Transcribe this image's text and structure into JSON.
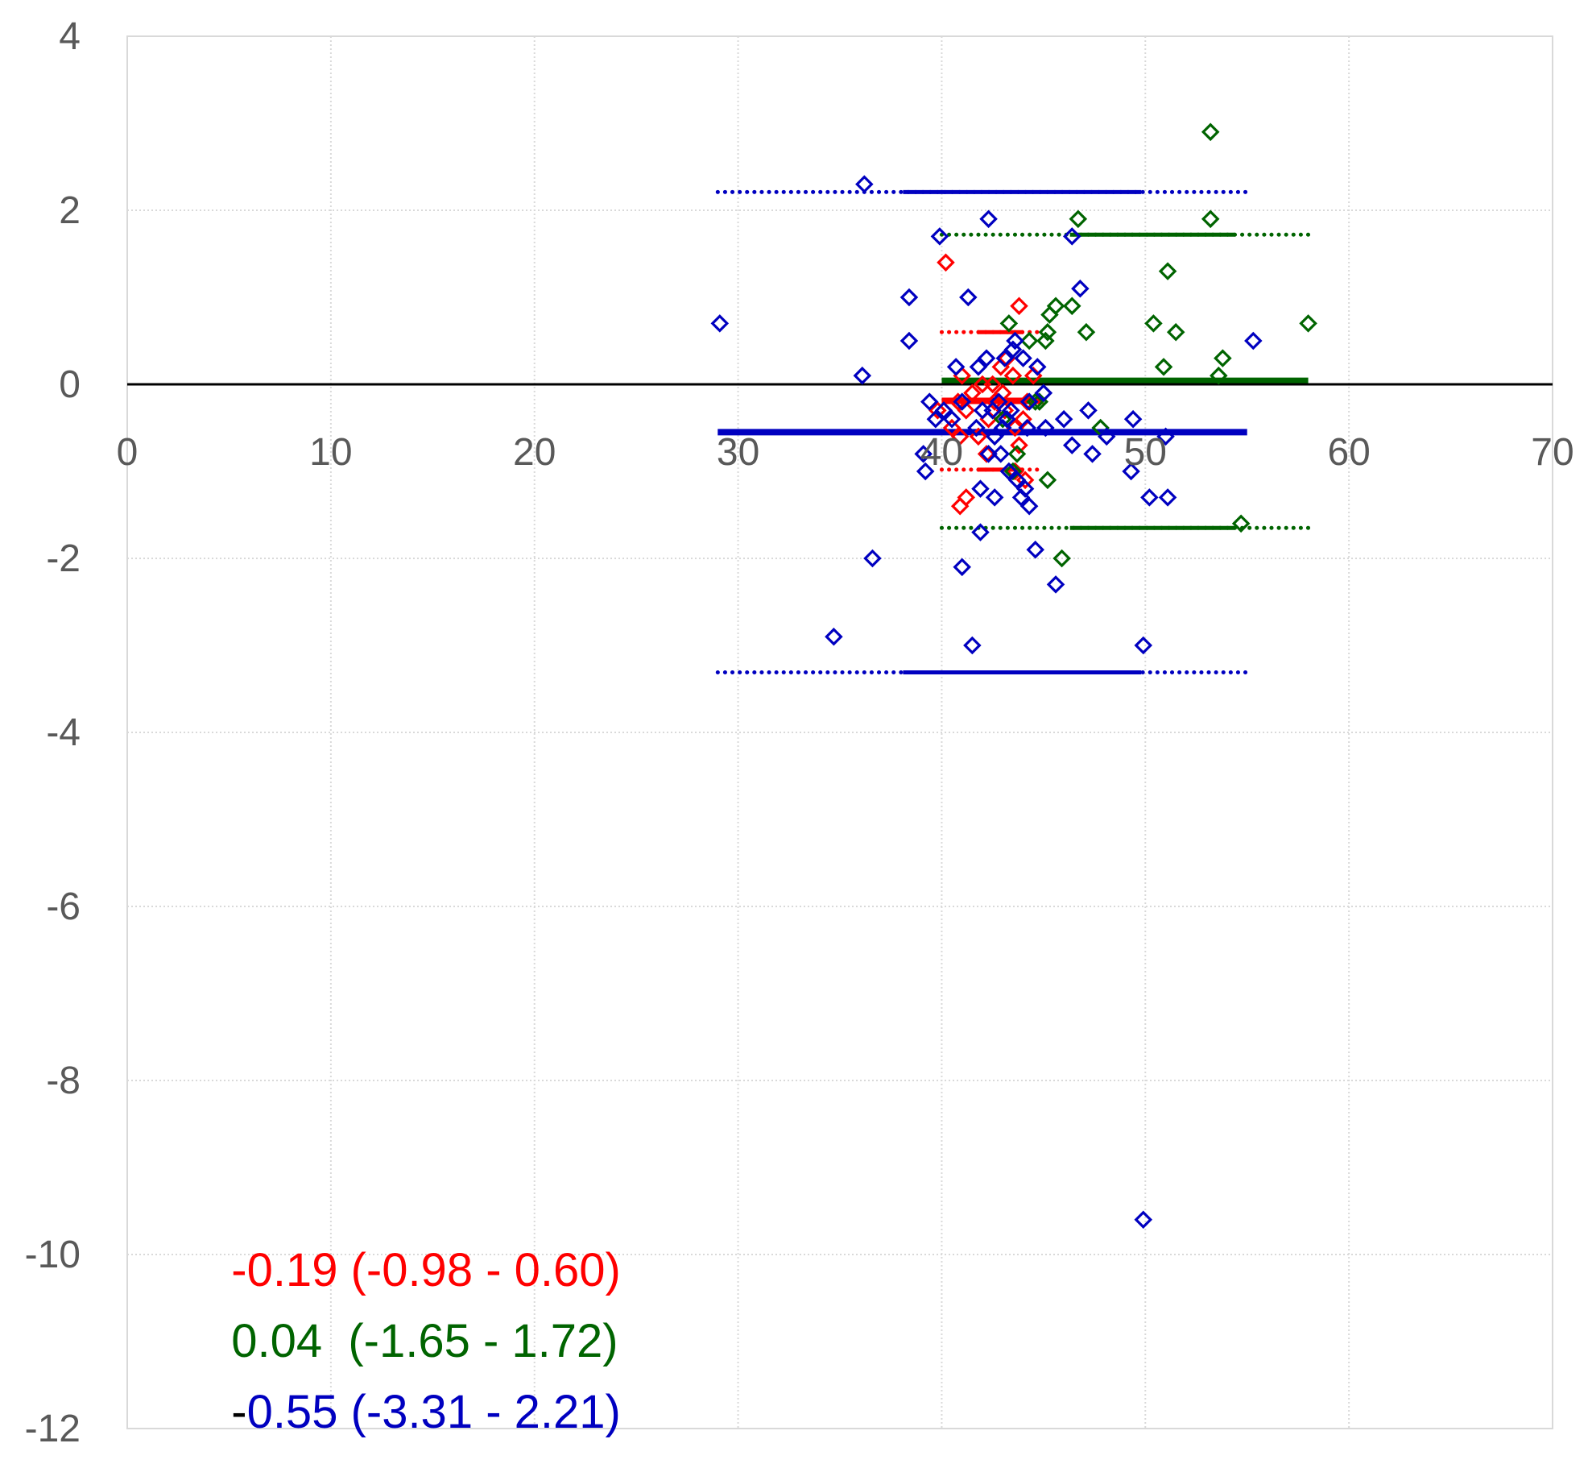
{
  "chart_data": {
    "type": "scatter",
    "title": "",
    "xlabel": "",
    "ylabel": "",
    "xlim": [
      0,
      70
    ],
    "ylim": [
      -12,
      4
    ],
    "x_ticks": [
      "0",
      "10",
      "20",
      "30",
      "40",
      "50",
      "60",
      "70"
    ],
    "y_ticks": [
      "4",
      "2",
      "0",
      "-2",
      "-4",
      "-6",
      "-8",
      "-10",
      "-12"
    ],
    "grid": true,
    "zero_line": 0,
    "series": [
      {
        "name": "red",
        "color": "#ff0000",
        "mean": -0.19,
        "lower": -0.98,
        "upper": 0.6,
        "limits_x": [
          40,
          45
        ],
        "label_lead": "-",
        "label_rest": "0.19 (-0.98 - 0.60)",
        "points": [
          [
            40.2,
            1.4
          ],
          [
            43.8,
            0.9
          ],
          [
            43.5,
            0.1
          ],
          [
            44.5,
            0.1
          ],
          [
            42.0,
            0.0
          ],
          [
            41.5,
            -0.1
          ],
          [
            40.8,
            -0.2
          ],
          [
            42.6,
            -0.2
          ],
          [
            43.1,
            -0.3
          ],
          [
            41.2,
            -0.3
          ],
          [
            39.8,
            -0.3
          ],
          [
            44.0,
            -0.4
          ],
          [
            42.3,
            -0.4
          ],
          [
            40.5,
            -0.5
          ],
          [
            43.6,
            -0.5
          ],
          [
            41.8,
            -0.6
          ],
          [
            42.9,
            0.2
          ],
          [
            43.2,
            0.3
          ],
          [
            41.0,
            0.1
          ],
          [
            44.2,
            -0.2
          ],
          [
            42.5,
            0.0
          ],
          [
            43.0,
            -0.1
          ],
          [
            40.9,
            -0.6
          ],
          [
            44.1,
            -1.1
          ],
          [
            43.6,
            -1.0
          ],
          [
            41.2,
            -1.3
          ],
          [
            40.9,
            -1.4
          ],
          [
            42.2,
            -0.8
          ],
          [
            43.8,
            -0.7
          ]
        ]
      },
      {
        "name": "green",
        "color": "#006400",
        "mean": 0.04,
        "lower": -1.65,
        "upper": 1.72,
        "limits_x": [
          40,
          58
        ],
        "label_lead": "",
        "label_rest": "0.04  (-1.65 - 1.72)",
        "points": [
          [
            53.2,
            2.9
          ],
          [
            53.2,
            1.9
          ],
          [
            46.7,
            1.9
          ],
          [
            51.1,
            1.3
          ],
          [
            45.6,
            0.9
          ],
          [
            46.4,
            0.9
          ],
          [
            45.3,
            0.8
          ],
          [
            43.3,
            0.7
          ],
          [
            45.2,
            0.6
          ],
          [
            47.1,
            0.6
          ],
          [
            50.4,
            0.7
          ],
          [
            51.5,
            0.6
          ],
          [
            58.0,
            0.7
          ],
          [
            44.3,
            0.5
          ],
          [
            45.1,
            0.5
          ],
          [
            53.8,
            0.3
          ],
          [
            50.9,
            0.2
          ],
          [
            53.6,
            0.1
          ],
          [
            44.8,
            -0.2
          ],
          [
            47.8,
            -0.5
          ],
          [
            43.7,
            -0.8
          ],
          [
            45.2,
            -1.1
          ],
          [
            43.5,
            -1.0
          ],
          [
            54.7,
            -1.6
          ],
          [
            45.9,
            -2.0
          ],
          [
            43.0,
            -0.4
          ],
          [
            44.6,
            -0.2
          ]
        ]
      },
      {
        "name": "blue",
        "color": "#0000c0",
        "mean": -0.55,
        "lower": -3.31,
        "upper": 2.21,
        "limits_x": [
          29,
          55
        ],
        "label_lead": "-",
        "label_rest": "0.55 (-3.31 - 2.21)",
        "points": [
          [
            36.2,
            2.3
          ],
          [
            42.3,
            1.9
          ],
          [
            46.4,
            1.7
          ],
          [
            39.9,
            1.7
          ],
          [
            38.4,
            1.0
          ],
          [
            41.3,
            1.0
          ],
          [
            46.8,
            1.1
          ],
          [
            29.1,
            0.7
          ],
          [
            38.4,
            0.5
          ],
          [
            55.3,
            0.5
          ],
          [
            36.1,
            0.1
          ],
          [
            40.7,
            0.2
          ],
          [
            41.8,
            0.2
          ],
          [
            42.2,
            0.3
          ],
          [
            43.1,
            0.3
          ],
          [
            43.5,
            0.4
          ],
          [
            44.0,
            0.3
          ],
          [
            43.6,
            0.5
          ],
          [
            44.7,
            0.2
          ],
          [
            39.4,
            -0.2
          ],
          [
            40.1,
            -0.3
          ],
          [
            41.0,
            -0.2
          ],
          [
            42.0,
            -0.3
          ],
          [
            42.8,
            -0.2
          ],
          [
            43.4,
            -0.3
          ],
          [
            44.3,
            -0.2
          ],
          [
            45.0,
            -0.1
          ],
          [
            39.7,
            -0.4
          ],
          [
            40.5,
            -0.4
          ],
          [
            41.7,
            -0.5
          ],
          [
            42.5,
            -0.3
          ],
          [
            43.2,
            -0.4
          ],
          [
            44.2,
            -0.5
          ],
          [
            45.1,
            -0.5
          ],
          [
            46.0,
            -0.4
          ],
          [
            47.2,
            -0.3
          ],
          [
            48.1,
            -0.6
          ],
          [
            49.4,
            -0.4
          ],
          [
            51.0,
            -0.6
          ],
          [
            39.1,
            -0.8
          ],
          [
            39.2,
            -1.0
          ],
          [
            42.3,
            -0.8
          ],
          [
            42.9,
            -0.8
          ],
          [
            43.3,
            -1.0
          ],
          [
            44.1,
            -1.2
          ],
          [
            44.3,
            -1.4
          ],
          [
            43.9,
            -1.3
          ],
          [
            42.6,
            -1.3
          ],
          [
            43.7,
            -1.1
          ],
          [
            41.9,
            -1.2
          ],
          [
            46.4,
            -0.7
          ],
          [
            47.4,
            -0.8
          ],
          [
            49.3,
            -1.0
          ],
          [
            50.2,
            -1.3
          ],
          [
            51.1,
            -1.3
          ],
          [
            41.9,
            -1.7
          ],
          [
            44.6,
            -1.9
          ],
          [
            36.6,
            -2.0
          ],
          [
            41.0,
            -2.1
          ],
          [
            45.6,
            -2.3
          ],
          [
            34.7,
            -2.9
          ],
          [
            41.5,
            -3.0
          ],
          [
            49.9,
            -3.0
          ],
          [
            49.9,
            -9.6
          ],
          [
            42.6,
            -0.6
          ],
          [
            43.0,
            -0.5
          ]
        ]
      }
    ]
  }
}
